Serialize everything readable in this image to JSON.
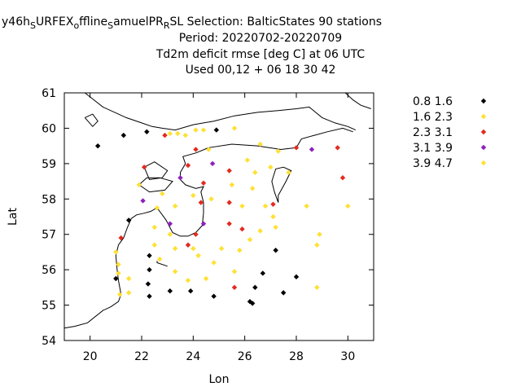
{
  "chart_data": {
    "type": "scatter",
    "title_lines": [
      {
        "segments": [
          {
            "text": "y46h",
            "sub": false
          },
          {
            "text": "S",
            "sub": true
          },
          {
            "text": "URFEX",
            "sub": false
          },
          {
            "text": "o",
            "sub": true
          },
          {
            "text": "ffline",
            "sub": false
          },
          {
            "text": "S",
            "sub": true
          },
          {
            "text": "amuelPR",
            "sub": false
          },
          {
            "text": "R",
            "sub": true
          },
          {
            "text": "SL   Selection: BalticStates     90 stations",
            "sub": false
          }
        ]
      },
      {
        "segments": [
          {
            "text": "Period: 20220702-20220709",
            "sub": false
          }
        ]
      },
      {
        "segments": [
          {
            "text": "Td2m deficit rmse [deg C] at  06 UTC",
            "sub": false
          }
        ]
      },
      {
        "segments": [
          {
            "text": "Used  00,12  + 06 18 30 42",
            "sub": false
          }
        ]
      }
    ],
    "xlabel": "Lon",
    "ylabel": "Lat",
    "xlim": [
      19,
      31
    ],
    "ylim": [
      54,
      61
    ],
    "xticks": [
      20,
      22,
      24,
      26,
      28,
      30
    ],
    "yticks": [
      54,
      55,
      56,
      57,
      58,
      59,
      60,
      61
    ],
    "grid": false,
    "legend_position": "outside-right",
    "series": [
      {
        "name": "0.8 1.6",
        "color": "#000000",
        "points": [
          [
            20.3,
            59.5
          ],
          [
            21.3,
            59.8
          ],
          [
            22.2,
            59.9
          ],
          [
            24.9,
            59.95
          ],
          [
            21.5,
            57.4
          ],
          [
            22.3,
            56.4
          ],
          [
            22.3,
            56.0
          ],
          [
            22.25,
            55.6
          ],
          [
            22.3,
            55.25
          ],
          [
            23.1,
            55.4
          ],
          [
            23.9,
            55.4
          ],
          [
            24.8,
            55.25
          ],
          [
            26.2,
            55.1
          ],
          [
            26.3,
            55.05
          ],
          [
            26.4,
            55.5
          ],
          [
            26.7,
            55.9
          ],
          [
            27.2,
            56.55
          ],
          [
            27.5,
            55.35
          ],
          [
            28.0,
            55.8
          ],
          [
            21.0,
            55.75
          ]
        ]
      },
      {
        "name": "1.6 2.3",
        "color": "#ffe034",
        "points": [
          [
            23.1,
            59.85
          ],
          [
            23.4,
            59.85
          ],
          [
            23.7,
            59.8
          ],
          [
            24.1,
            59.95
          ],
          [
            24.4,
            59.95
          ],
          [
            25.6,
            60.0
          ],
          [
            24.6,
            59.4
          ],
          [
            26.1,
            59.1
          ],
          [
            26.6,
            59.55
          ],
          [
            27.3,
            59.35
          ],
          [
            26.4,
            58.75
          ],
          [
            27.0,
            58.9
          ],
          [
            27.7,
            58.75
          ],
          [
            21.9,
            58.4
          ],
          [
            22.8,
            58.15
          ],
          [
            23.3,
            57.8
          ],
          [
            22.6,
            57.75
          ],
          [
            22.5,
            57.2
          ],
          [
            23.1,
            57.0
          ],
          [
            22.5,
            56.7
          ],
          [
            22.7,
            56.3
          ],
          [
            23.3,
            56.6
          ],
          [
            24.0,
            56.6
          ],
          [
            24.2,
            56.4
          ],
          [
            24.8,
            56.2
          ],
          [
            25.1,
            56.6
          ],
          [
            25.6,
            55.95
          ],
          [
            24.5,
            55.75
          ],
          [
            23.8,
            55.7
          ],
          [
            23.3,
            55.95
          ],
          [
            21.0,
            56.5
          ],
          [
            21.1,
            56.15
          ],
          [
            21.1,
            55.9
          ],
          [
            21.5,
            55.75
          ],
          [
            21.5,
            55.35
          ],
          [
            21.15,
            55.3
          ],
          [
            24.0,
            58.1
          ],
          [
            25.5,
            58.4
          ],
          [
            25.9,
            57.8
          ],
          [
            26.3,
            58.3
          ],
          [
            27.1,
            57.5
          ],
          [
            27.2,
            57.2
          ],
          [
            26.6,
            57.1
          ],
          [
            26.2,
            56.85
          ],
          [
            25.8,
            56.55
          ],
          [
            28.4,
            57.8
          ],
          [
            28.9,
            57.0
          ],
          [
            28.8,
            56.7
          ],
          [
            28.8,
            55.5
          ],
          [
            30.0,
            57.8
          ],
          [
            26.8,
            57.8
          ],
          [
            24.7,
            58.0
          ]
        ]
      },
      {
        "name": "2.3 3.1",
        "color": "#e42a1e",
        "points": [
          [
            22.9,
            59.8
          ],
          [
            24.1,
            59.4
          ],
          [
            23.8,
            58.95
          ],
          [
            22.1,
            58.9
          ],
          [
            25.4,
            58.8
          ],
          [
            24.4,
            58.45
          ],
          [
            24.3,
            57.9
          ],
          [
            25.4,
            57.9
          ],
          [
            27.1,
            57.85
          ],
          [
            28.0,
            59.45
          ],
          [
            29.6,
            59.45
          ],
          [
            29.8,
            58.6
          ],
          [
            25.4,
            57.3
          ],
          [
            25.9,
            57.15
          ],
          [
            24.1,
            57.0
          ],
          [
            23.8,
            56.7
          ],
          [
            21.2,
            56.9
          ],
          [
            25.6,
            55.5
          ]
        ]
      },
      {
        "name": "3.1 3.9",
        "color": "#8e20c0",
        "points": [
          [
            22.05,
            57.95
          ],
          [
            23.1,
            57.3
          ],
          [
            23.5,
            58.6
          ],
          [
            24.75,
            59.0
          ],
          [
            24.4,
            57.3
          ],
          [
            28.6,
            59.4
          ]
        ]
      },
      {
        "name": "3.9 4.7",
        "color": "#ffe034",
        "points": []
      }
    ]
  }
}
